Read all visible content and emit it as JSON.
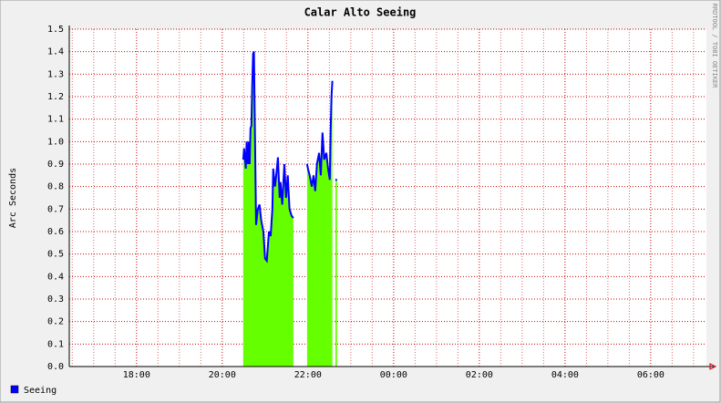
{
  "chart_data": {
    "type": "line",
    "title": "Calar Alto Seeing",
    "ylabel": "Arc Seconds",
    "watermark": "RRDTOOL / TOBI OETIKER",
    "x": [
      20.49,
      20.51,
      20.55,
      20.57,
      20.6,
      20.62,
      20.64,
      20.66,
      20.68,
      20.7,
      20.72,
      20.74,
      20.79,
      20.83,
      20.87,
      20.91,
      20.96,
      21.0,
      21.04,
      21.09,
      21.13,
      21.17,
      21.19,
      21.23,
      21.26,
      21.3,
      21.34,
      21.36,
      21.4,
      21.45,
      21.49,
      21.53,
      21.57,
      21.62,
      21.66,
      21.8,
      21.98,
      22.0,
      22.04,
      22.09,
      22.13,
      22.17,
      22.21,
      22.26,
      22.3,
      22.34,
      22.38,
      22.43,
      22.47,
      22.51,
      22.53,
      22.55,
      22.57,
      22.6,
      22.64,
      22.68
    ],
    "series": [
      {
        "name": "Seeing",
        "color": "#0000ff",
        "fill_color": "#66ff00",
        "values": [
          0.92,
          0.97,
          0.88,
          1.0,
          0.9,
          1.0,
          0.9,
          1.06,
          1.07,
          1.25,
          1.39,
          1.4,
          0.63,
          0.7,
          0.72,
          0.65,
          0.6,
          0.48,
          0.47,
          0.6,
          0.58,
          0.7,
          0.88,
          0.8,
          0.85,
          0.93,
          0.75,
          0.82,
          0.72,
          0.9,
          0.75,
          0.85,
          0.7,
          0.67,
          0.66,
          null,
          0.9,
          0.88,
          0.85,
          0.8,
          0.85,
          0.78,
          0.9,
          0.95,
          0.85,
          1.04,
          0.92,
          0.95,
          0.88,
          0.83,
          1.05,
          1.2,
          1.27,
          null,
          0.83,
          0.83
        ]
      }
    ],
    "xlim": [
      16.43,
      31.3
    ],
    "xticks": [
      {
        "value": 18,
        "label": "18:00"
      },
      {
        "value": 20,
        "label": "20:00"
      },
      {
        "value": 22,
        "label": "22:00"
      },
      {
        "value": 24,
        "label": "00:00"
      },
      {
        "value": 26,
        "label": "02:00"
      },
      {
        "value": 28,
        "label": "04:00"
      },
      {
        "value": 30,
        "label": "06:00"
      }
    ],
    "xminorticks": [
      16.5,
      17,
      17.5,
      18.5,
      19,
      19.5,
      20.5,
      21,
      21.5,
      22.5,
      23,
      23.5,
      24.5,
      25,
      25.5,
      26.5,
      27,
      27.5,
      28.5,
      29,
      29.5,
      30.5,
      31
    ],
    "ylim": [
      0,
      1.5
    ],
    "yticks": [
      {
        "value": 0,
        "label": "0.0"
      },
      0.1,
      0.2,
      0.3,
      0.4,
      0.5,
      0.6,
      0.7,
      0.8,
      0.9,
      {
        "value": 1,
        "label": "1.0"
      },
      1.1,
      1.2,
      1.3,
      1.4,
      1.5
    ],
    "grid": true,
    "grid_color": "#cc0000"
  }
}
